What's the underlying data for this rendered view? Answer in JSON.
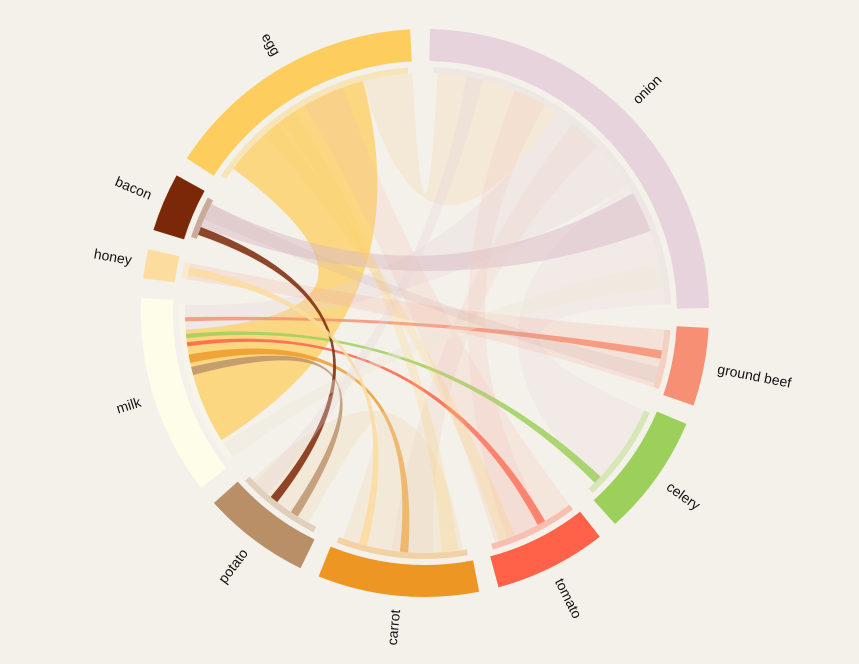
{
  "chart_data": {
    "type": "chord",
    "groups": [
      {
        "name": "onion",
        "color": "#e6d3db",
        "start": 1,
        "end": 89
      },
      {
        "name": "ground beef",
        "color": "#f78f74",
        "start": 93,
        "end": 109
      },
      {
        "name": "celery",
        "color": "#9dd05a",
        "start": 113,
        "end": 138
      },
      {
        "name": "tomato",
        "color": "#ff6249",
        "start": 142,
        "end": 165
      },
      {
        "name": "carrot",
        "color": "#ee9623",
        "start": 169,
        "end": 202
      },
      {
        "name": "potato",
        "color": "#b98f68",
        "start": 206,
        "end": 228
      },
      {
        "name": "milk",
        "color": "#fdfdea",
        "start": 232,
        "end": 273
      },
      {
        "name": "honey",
        "color": "#fcdc9f",
        "start": 277,
        "end": 283
      },
      {
        "name": "bacon",
        "color": "#7b2808",
        "start": 287,
        "end": 299
      },
      {
        "name": "egg",
        "color": "#fdcd5d",
        "start": 303,
        "end": 357
      }
    ],
    "chords": [
      {
        "source": "egg",
        "sa": [
          307,
          345
        ],
        "target": "milk",
        "ta": [
          238,
          266
        ],
        "color": "#fdcd5d",
        "opacity": 0.75
      },
      {
        "source": "egg",
        "sa": [
          345,
          357
        ],
        "target": "onion",
        "ta": [
          3,
          33
        ],
        "color": "#f5d5a0",
        "opacity": 0.25
      },
      {
        "source": "onion",
        "sa": [
          33,
          58
        ],
        "target": "milk",
        "ta": [
          266,
          272
        ],
        "color": "#e6d3db",
        "opacity": 0.3
      },
      {
        "source": "onion",
        "sa": [
          58,
          88
        ],
        "target": "celery",
        "ta": [
          114,
          135
        ],
        "color": "#e6d3db",
        "opacity": 0.2
      },
      {
        "source": "onion",
        "sa": [
          60,
          70
        ],
        "target": "bacon",
        "ta": [
          291,
          297
        ],
        "color": "#d9b9c5",
        "opacity": 0.5
      },
      {
        "source": "onion",
        "sa": [
          38,
          46
        ],
        "target": "carrot",
        "ta": [
          178,
          188
        ],
        "color": "#f0d5c8",
        "opacity": 0.3
      },
      {
        "source": "onion",
        "sa": [
          22,
          30
        ],
        "target": "tomato",
        "ta": [
          150,
          160
        ],
        "color": "#f3c7c0",
        "opacity": 0.25
      },
      {
        "source": "ground beef",
        "sa": [
          94,
          108
        ],
        "target": "honey",
        "ta": [
          278,
          282
        ],
        "color": "#f78f74",
        "opacity": 0.15
      },
      {
        "source": "ground beef",
        "sa": [
          99,
          101
        ],
        "target": "milk",
        "ta": [
          268,
          269
        ],
        "color": "#f78f74",
        "opacity": 0.85
      },
      {
        "source": "celery",
        "sa": [
          133,
          135
        ],
        "target": "milk",
        "ta": [
          264,
          265
        ],
        "color": "#9dd05a",
        "opacity": 0.85
      },
      {
        "source": "tomato",
        "sa": [
          150,
          152
        ],
        "target": "milk",
        "ta": [
          262,
          263
        ],
        "color": "#ff6249",
        "opacity": 0.85
      },
      {
        "source": "tomato",
        "sa": [
          143,
          163
        ],
        "target": "egg",
        "ta": [
          330,
          340
        ],
        "color": "#f5b8a8",
        "opacity": 0.2
      },
      {
        "source": "carrot",
        "sa": [
          184,
          186
        ],
        "target": "milk",
        "ta": [
          258,
          260
        ],
        "color": "#ee9623",
        "opacity": 0.8
      },
      {
        "source": "carrot",
        "sa": [
          171,
          200
        ],
        "target": "potato",
        "ta": [
          209,
          226
        ],
        "color": "#f0d9b8",
        "opacity": 0.35
      },
      {
        "source": "potato",
        "sa": [
          212,
          214
        ],
        "target": "milk",
        "ta": [
          255,
          257
        ],
        "color": "#b98f68",
        "opacity": 0.8
      },
      {
        "source": "bacon",
        "sa": [
          289,
          291
        ],
        "target": "potato",
        "ta": [
          218,
          220
        ],
        "color": "#7b2808",
        "opacity": 0.85
      },
      {
        "source": "honey",
        "sa": [
          279,
          281
        ],
        "target": "carrot",
        "ta": [
          194,
          196
        ],
        "color": "#fcdc9f",
        "opacity": 0.85
      },
      {
        "source": "egg",
        "sa": [
          318,
          322
        ],
        "target": "tomato",
        "ta": [
          158,
          162
        ],
        "color": "#fdcd5d",
        "opacity": 0.2
      },
      {
        "source": "egg",
        "sa": [
          323,
          327
        ],
        "target": "carrot",
        "ta": [
          172,
          176
        ],
        "color": "#fdcd5d",
        "opacity": 0.2
      },
      {
        "source": "onion",
        "sa": [
          10,
          14
        ],
        "target": "potato",
        "ta": [
          221,
          225
        ],
        "color": "#e6d3db",
        "opacity": 0.3
      },
      {
        "source": "milk",
        "sa": [
          233,
          237
        ],
        "target": "onion",
        "ta": [
          78,
          84
        ],
        "color": "#efe9d8",
        "opacity": 0.4
      },
      {
        "source": "bacon",
        "sa": [
          293,
          297
        ],
        "target": "ground beef",
        "ta": [
          103,
          107
        ],
        "color": "#caa",
        "opacity": 0.2
      }
    ]
  }
}
